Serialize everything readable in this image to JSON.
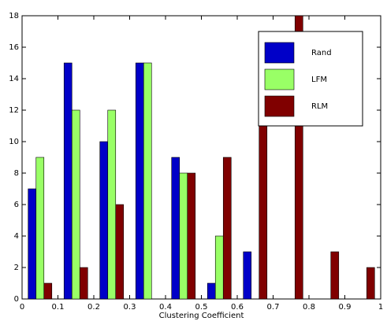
{
  "chart_data": {
    "type": "bar",
    "xlabel": "Clustering Coefficient",
    "x": [
      0.05,
      0.15,
      0.25,
      0.35,
      0.45,
      0.55,
      0.65,
      0.75,
      0.85,
      0.95
    ],
    "series": [
      {
        "name": "Rand",
        "color": "#0000c8",
        "values": [
          7,
          15,
          10,
          15,
          9,
          1,
          3,
          0,
          0,
          0
        ]
      },
      {
        "name": "LFM",
        "color": "#99ff66",
        "values": [
          9,
          12,
          12,
          15,
          8,
          4,
          0,
          0,
          0,
          0
        ]
      },
      {
        "name": "RLM",
        "color": "#800000",
        "values": [
          1,
          2,
          6,
          0,
          8,
          9,
          11,
          18,
          3,
          2
        ]
      }
    ],
    "xlim": [
      0,
      1
    ],
    "xticks": [
      0,
      0.1,
      0.2,
      0.3,
      0.4,
      0.5,
      0.6,
      0.7,
      0.8,
      0.9,
      1
    ],
    "ylim": [
      0,
      18
    ],
    "yticks": [
      0,
      2,
      4,
      6,
      8,
      10,
      12,
      14,
      16,
      18
    ],
    "grid": false,
    "legend": "upper right"
  }
}
